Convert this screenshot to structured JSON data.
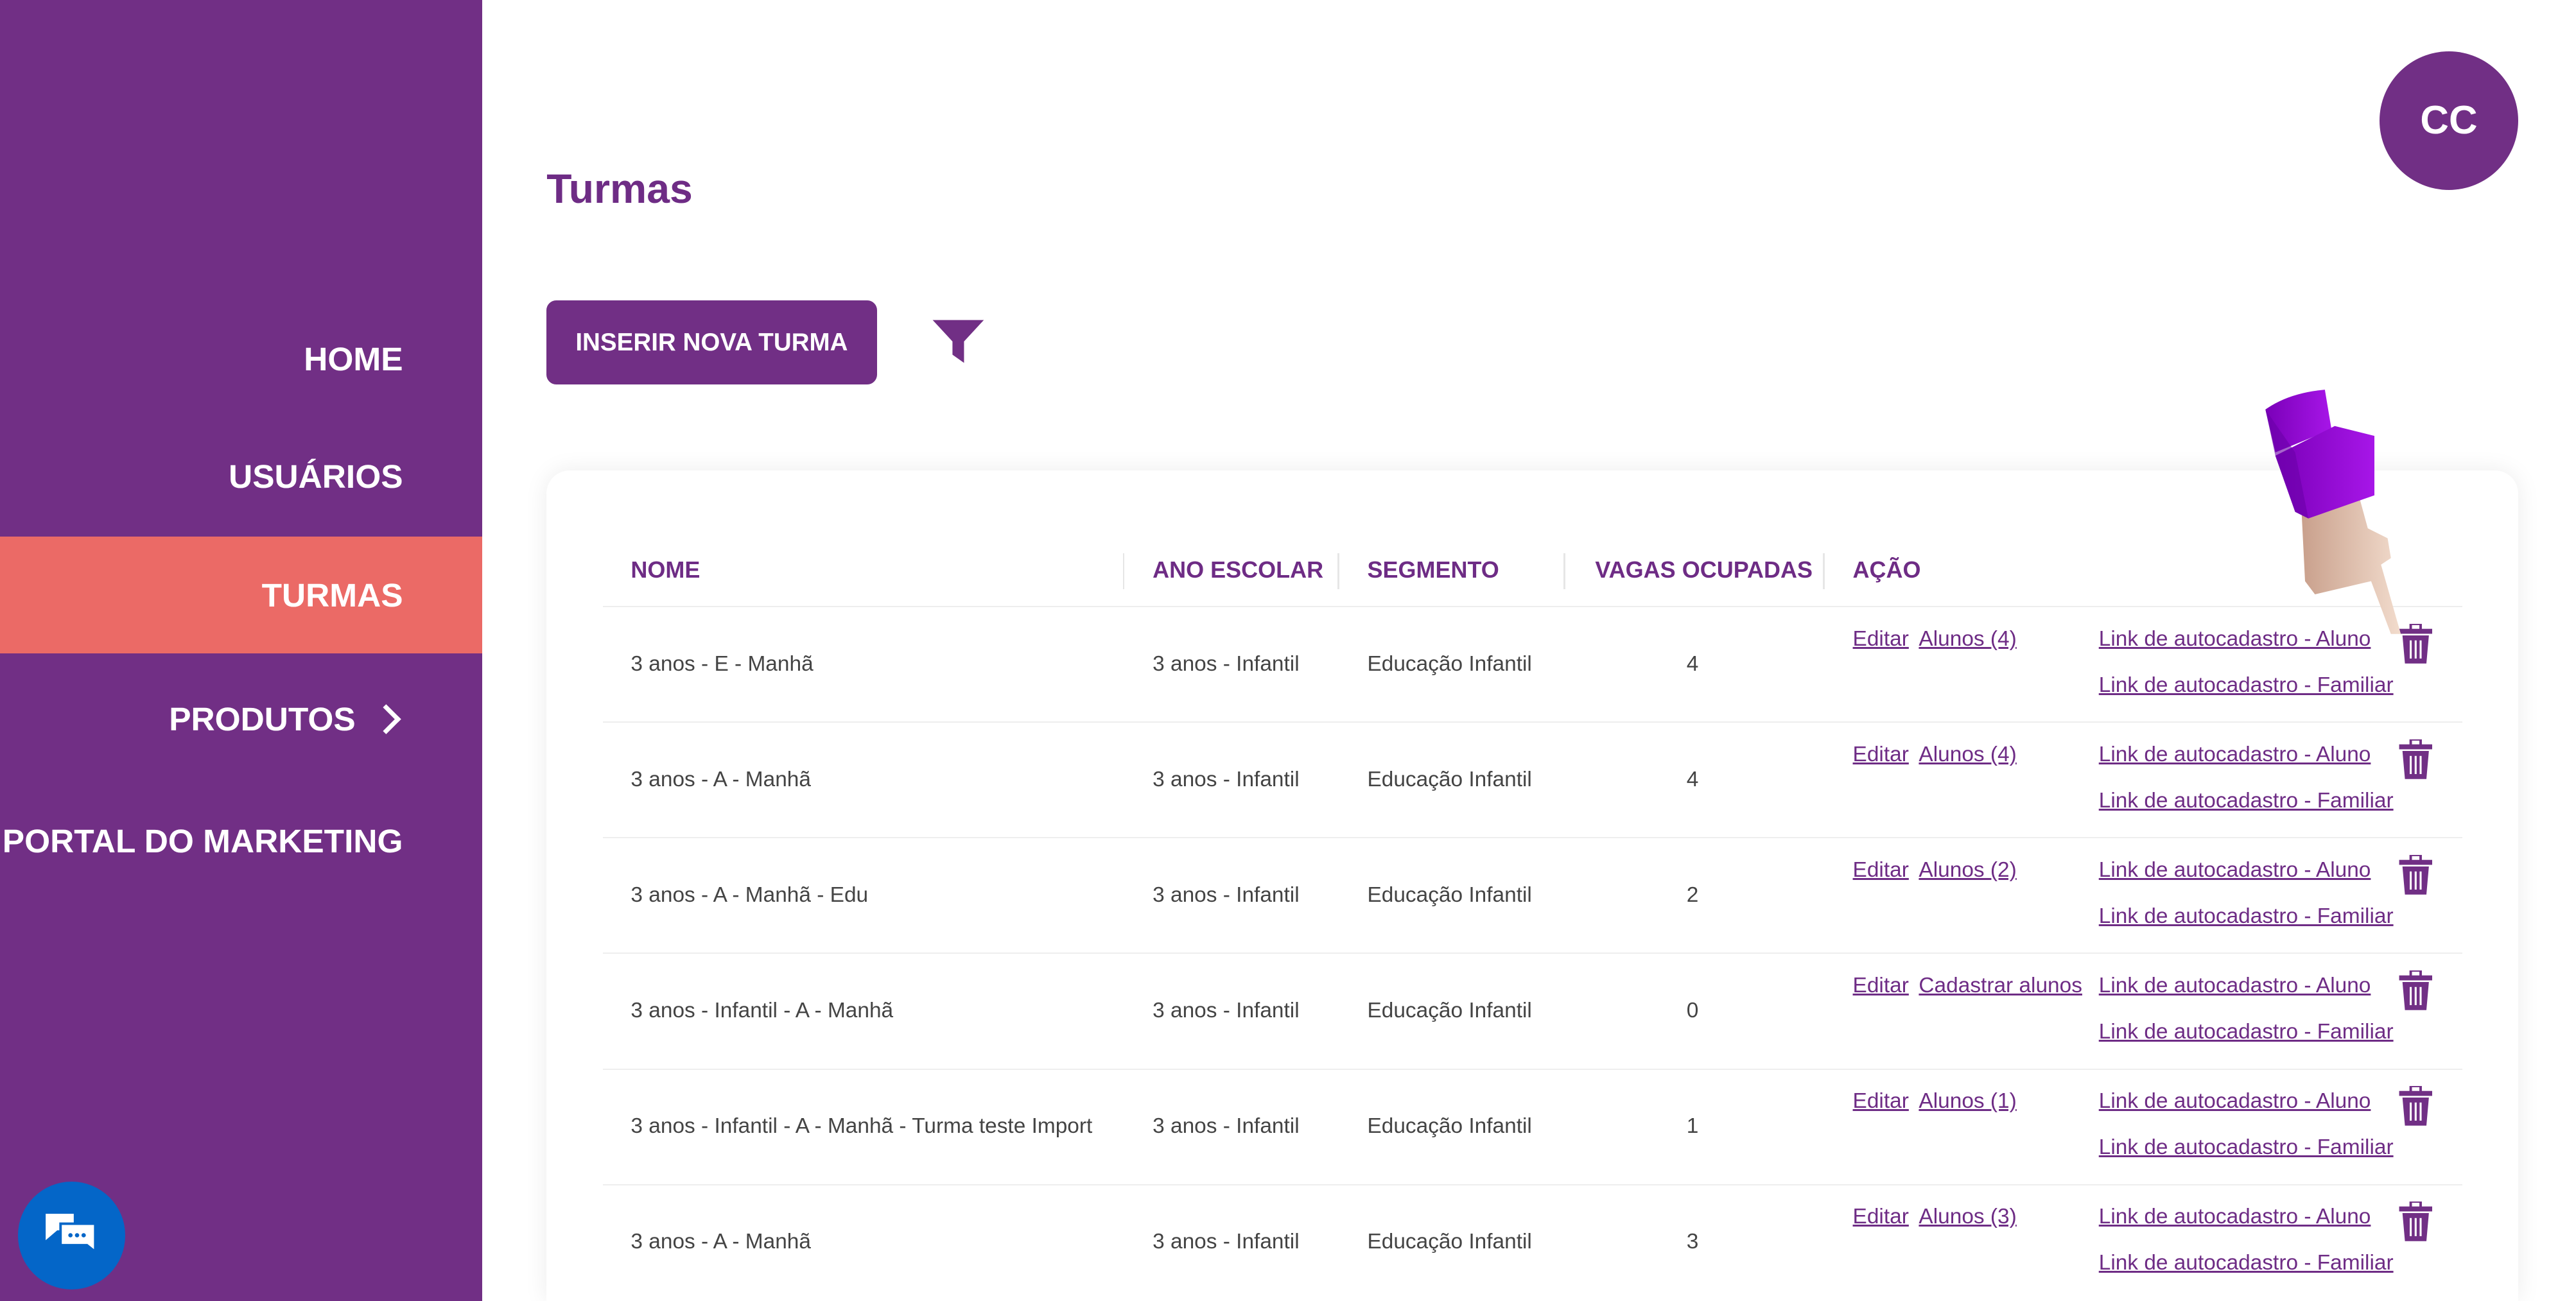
{
  "colors": {
    "sidebar": "#712F85",
    "active": "#EB6A66",
    "accent": "#6E2C85",
    "chat": "#0466C8"
  },
  "sidebar": {
    "items": [
      {
        "label": "HOME"
      },
      {
        "label": "USUÁRIOS"
      },
      {
        "label": "TURMAS",
        "active": true
      },
      {
        "label": "PRODUTOS",
        "icon": "chevron-right-icon"
      },
      {
        "label": "PORTAL DO MARKETING"
      }
    ]
  },
  "header": {
    "title": "Turmas",
    "avatar": "CC"
  },
  "toolbar": {
    "insert_label": "INSERIR NOVA TURMA",
    "filter_icon": "filter-icon"
  },
  "table": {
    "columns": [
      "NOME",
      "ANO ESCOLAR",
      "SEGMENTO",
      "VAGAS OCUPADAS",
      "AÇÃO"
    ],
    "link_edit": "Editar",
    "link_aluno": "Link de autocadastro - Aluno",
    "link_familiar": "Link de autocadastro - Familiar",
    "rows": [
      {
        "nome": "3 anos - E - Manhã",
        "ano": "3 anos - Infantil",
        "segmento": "Educação Infantil",
        "vagas": "4",
        "alunos": "Alunos (4)"
      },
      {
        "nome": "3 anos - A - Manhã",
        "ano": "3 anos - Infantil",
        "segmento": "Educação Infantil",
        "vagas": "4",
        "alunos": "Alunos (4)"
      },
      {
        "nome": "3 anos - A - Manhã - Edu",
        "ano": "3 anos - Infantil",
        "segmento": "Educação Infantil",
        "vagas": "2",
        "alunos": "Alunos (2)"
      },
      {
        "nome": "3 anos - Infantil - A - Manhã",
        "ano": "3 anos - Infantil",
        "segmento": "Educação Infantil",
        "vagas": "0",
        "alunos": "Cadastrar alunos"
      },
      {
        "nome": "3 anos - Infantil - A - Manhã - Turma teste Import",
        "ano": "3 anos - Infantil",
        "segmento": "Educação Infantil",
        "vagas": "1",
        "alunos": "Alunos (1)"
      },
      {
        "nome": "3 anos - A - Manhã",
        "ano": "3 anos - Infantil",
        "segmento": "Educação Infantil",
        "vagas": "3",
        "alunos": "Alunos (3)"
      }
    ]
  }
}
